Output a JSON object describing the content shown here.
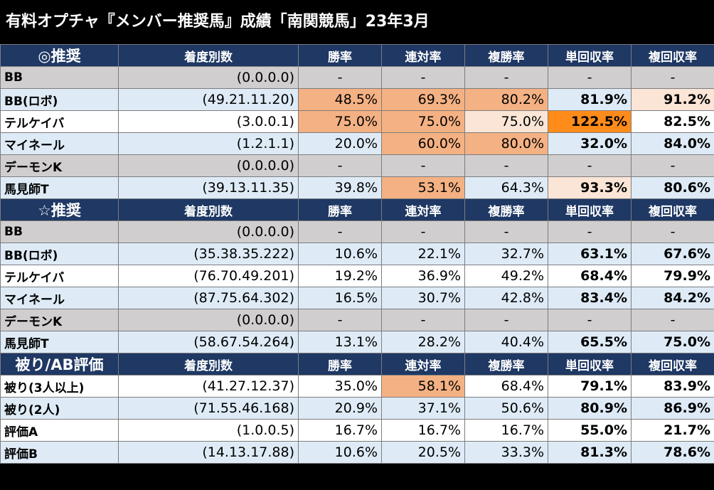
{
  "title": "有料オプチャ『メンバー推奨馬』成績「南関競馬」23年3月",
  "headers": [
    "着度別数",
    "勝率",
    "連対率",
    "複勝率",
    "単回収率",
    "複回収率"
  ],
  "sections": [
    {
      "label": "◎推奨",
      "rows": [
        {
          "name": "BB",
          "record": "(0.0.0.0)",
          "cells": [
            "-",
            "-",
            "-",
            "-",
            "-"
          ],
          "style": "gray"
        },
        {
          "name": "BB(ロボ)",
          "record": "(49.21.11.20)",
          "cells": [
            "48.5%",
            "69.3%",
            "80.2%",
            "81.9%",
            "91.2%"
          ],
          "style": "blue",
          "heat": [
            "h1",
            "h1",
            "h1",
            "",
            "h2"
          ]
        },
        {
          "name": "テルケイバ",
          "record": "(3.0.0.1)",
          "cells": [
            "75.0%",
            "75.0%",
            "75.0%",
            "122.5%",
            "82.5%"
          ],
          "style": "white",
          "heat": [
            "h1",
            "h1",
            "h2",
            "h3",
            ""
          ]
        },
        {
          "name": "マイネール",
          "record": "(1.2.1.1)",
          "cells": [
            "20.0%",
            "60.0%",
            "80.0%",
            "32.0%",
            "84.0%"
          ],
          "style": "blue",
          "heat": [
            "",
            "h1",
            "h1",
            "",
            ""
          ]
        },
        {
          "name": "デーモンK",
          "record": "(0.0.0.0)",
          "cells": [
            "-",
            "-",
            "-",
            "-",
            "-"
          ],
          "style": "gray"
        },
        {
          "name": "馬見師T",
          "record": "(39.13.11.35)",
          "cells": [
            "39.8%",
            "53.1%",
            "64.3%",
            "93.3%",
            "80.6%"
          ],
          "style": "blue",
          "heat": [
            "",
            "h1",
            "",
            "h2",
            ""
          ]
        }
      ]
    },
    {
      "label": "☆推奨",
      "rows": [
        {
          "name": "BB",
          "record": "(0.0.0.0)",
          "cells": [
            "-",
            "-",
            "-",
            "-",
            "-"
          ],
          "style": "gray"
        },
        {
          "name": "BB(ロボ)",
          "record": "(35.38.35.222)",
          "cells": [
            "10.6%",
            "22.1%",
            "32.7%",
            "63.1%",
            "67.6%"
          ],
          "style": "blue"
        },
        {
          "name": "テルケイバ",
          "record": "(76.70.49.201)",
          "cells": [
            "19.2%",
            "36.9%",
            "49.2%",
            "68.4%",
            "79.9%"
          ],
          "style": "white"
        },
        {
          "name": "マイネール",
          "record": "(87.75.64.302)",
          "cells": [
            "16.5%",
            "30.7%",
            "42.8%",
            "83.4%",
            "84.2%"
          ],
          "style": "blue"
        },
        {
          "name": "デーモンK",
          "record": "(0.0.0.0)",
          "cells": [
            "-",
            "-",
            "-",
            "-",
            "-"
          ],
          "style": "gray"
        },
        {
          "name": "馬見師T",
          "record": "(58.67.54.264)",
          "cells": [
            "13.1%",
            "28.2%",
            "40.4%",
            "65.5%",
            "75.0%"
          ],
          "style": "blue"
        }
      ]
    },
    {
      "label": "被り/AB評価",
      "rows": [
        {
          "name": "被り(3人以上)",
          "record": "(41.27.12.37)",
          "cells": [
            "35.0%",
            "58.1%",
            "68.4%",
            "79.1%",
            "83.9%"
          ],
          "style": "white",
          "heat": [
            "",
            "h1",
            "",
            "",
            ""
          ]
        },
        {
          "name": "被り(2人)",
          "record": "(71.55.46.168)",
          "cells": [
            "20.9%",
            "37.1%",
            "50.6%",
            "80.9%",
            "86.9%"
          ],
          "style": "blue"
        },
        {
          "name": "評価A",
          "record": "(1.0.0.5)",
          "cells": [
            "16.7%",
            "16.7%",
            "16.7%",
            "55.0%",
            "21.7%"
          ],
          "style": "white"
        },
        {
          "name": "評価B",
          "record": "(14.13.17.88)",
          "cells": [
            "10.6%",
            "20.5%",
            "33.3%",
            "81.3%",
            "78.6%"
          ],
          "style": "blue"
        }
      ]
    }
  ]
}
